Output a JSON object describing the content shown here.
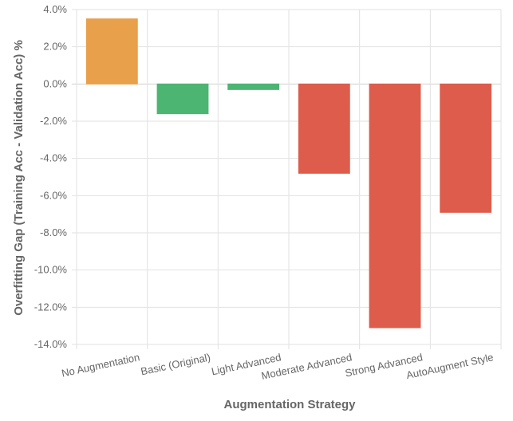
{
  "chart_data": {
    "type": "bar",
    "title": "",
    "xlabel": "Augmentation Strategy",
    "ylabel": "Overfitting Gap (Training Acc - Validation Acc) %",
    "categories": [
      "No Augmentation",
      "Basic (Original)",
      "Light Advanced",
      "Moderate Advanced",
      "Strong Advanced",
      "AutoAugment Style"
    ],
    "values": [
      3.5,
      -1.6,
      -0.3,
      -4.8,
      -13.1,
      -6.9
    ],
    "bar_colors": [
      "#e8a04a",
      "#4cb572",
      "#4cb572",
      "#dd5c4c",
      "#dd5c4c",
      "#dd5c4c"
    ],
    "ylim": [
      -14,
      4
    ],
    "yticks": [
      4,
      2,
      0,
      -2,
      -4,
      -6,
      -8,
      -10,
      -12,
      -14
    ],
    "ytick_labels": [
      "4.0%",
      "2.0%",
      "0.0%",
      "-2.0%",
      "-4.0%",
      "-6.0%",
      "-8.0%",
      "-10.0%",
      "-12.0%",
      "-14.0%"
    ],
    "grid": true,
    "legend": false
  }
}
